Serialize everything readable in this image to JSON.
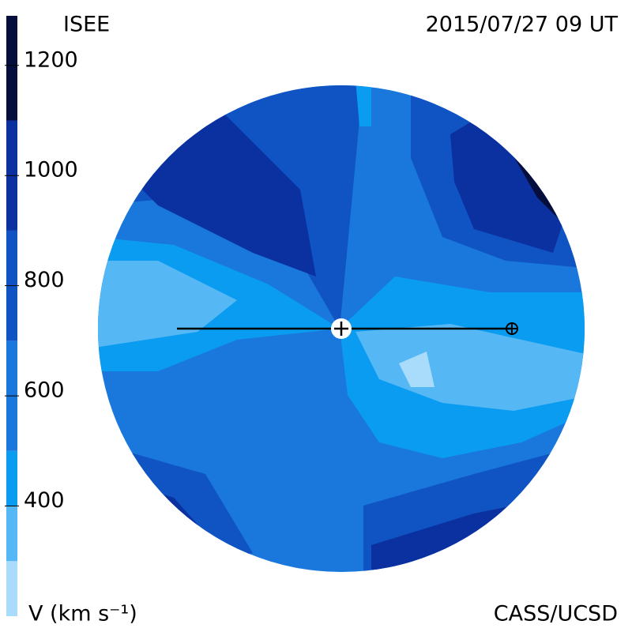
{
  "chart_data": {
    "type": "colormap",
    "title": "ISEE",
    "subtitle": "2015/07/27 09 UT",
    "colorbar_label": "V (km s⁻¹)",
    "credit": "CASS/UCSD",
    "ylim": [
      200,
      1290
    ],
    "yticks": [
      400,
      600,
      800,
      1000,
      1200
    ],
    "levels": [
      200,
      300,
      400,
      500,
      700,
      900,
      1100,
      1290
    ],
    "colors": [
      "#a8dcfa",
      "#55b8f4",
      "#0a9cf0",
      "#1a78dc",
      "#0f54c2",
      "#0b30a0",
      "#060e3c"
    ]
  }
}
